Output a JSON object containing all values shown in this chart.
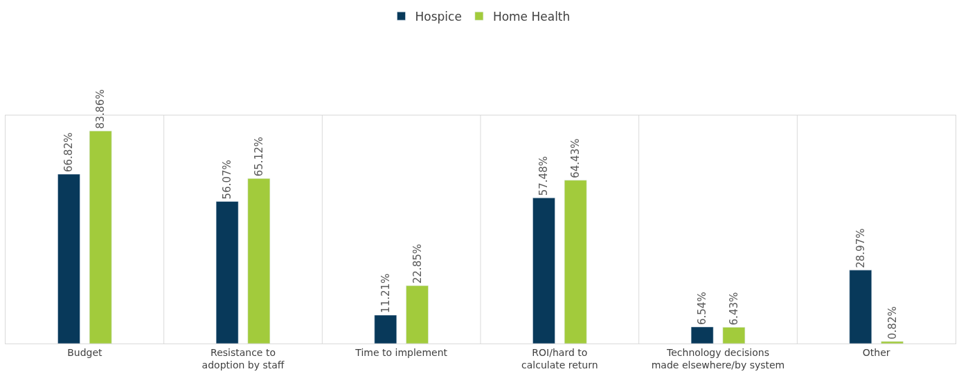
{
  "chart_data": {
    "type": "bar",
    "categories": [
      "Budget",
      "Resistance to\nadoption by staff",
      "Time to implement",
      "ROI/hard to\ncalculate return",
      "Technology decisions\nmade elsewhere/by system",
      "Other"
    ],
    "series": [
      {
        "name": "Hospice",
        "color": "#08395a",
        "values": [
          66.82,
          56.07,
          11.21,
          57.48,
          6.54,
          28.97
        ],
        "value_labels": [
          "66.82%",
          "56.07%",
          "11.21%",
          "57.48%",
          "6.54%",
          "28.97%"
        ]
      },
      {
        "name": "Home Health",
        "color": "#a2cb3c",
        "values": [
          83.86,
          65.12,
          22.85,
          64.43,
          6.43,
          0.82
        ],
        "value_labels": [
          "83.86%",
          "65.12%",
          "22.85%",
          "64.43%",
          "6.43%",
          "0.82%"
        ]
      }
    ],
    "ylim": [
      0,
      90
    ],
    "tick_labels": "x",
    "grid": "x",
    "legend": "top"
  }
}
